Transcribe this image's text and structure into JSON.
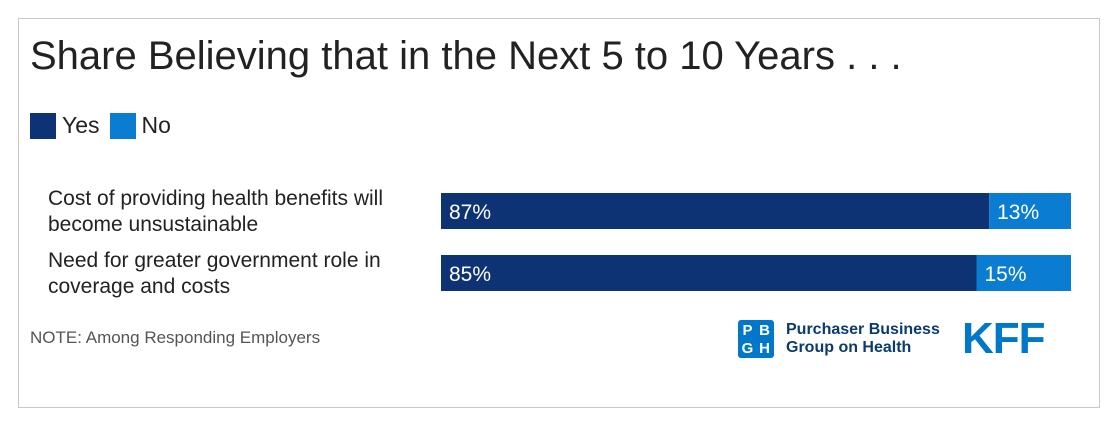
{
  "title": "Share Believing that in the Next 5 to 10 Years . . .",
  "legend": [
    {
      "label": "Yes",
      "color": "#0e3374"
    },
    {
      "label": "No",
      "color": "#0a7dd3"
    }
  ],
  "note": "NOTE: Among Responding Employers",
  "logos": {
    "pbgh_mark": [
      "P",
      "B",
      "G",
      "H"
    ],
    "pbgh_line1": "Purchaser Business",
    "pbgh_line2": "Group on Health",
    "kff": "KFF"
  },
  "chart_data": {
    "type": "bar",
    "orientation": "horizontal",
    "stacked": true,
    "categories": [
      [
        "Cost of providing health benefits will",
        "become unsustainable"
      ],
      [
        "Need for greater government role in",
        "coverage and costs"
      ]
    ],
    "series": [
      {
        "name": "Yes",
        "values": [
          87,
          85
        ],
        "labels": [
          "87%",
          "85%"
        ],
        "color": "#0e3374"
      },
      {
        "name": "No",
        "values": [
          13,
          15
        ],
        "labels": [
          "13%",
          "15%"
        ],
        "color": "#0a7dd3"
      }
    ],
    "xlim": [
      0,
      100
    ],
    "grid": false,
    "legend_position": "top-left"
  }
}
